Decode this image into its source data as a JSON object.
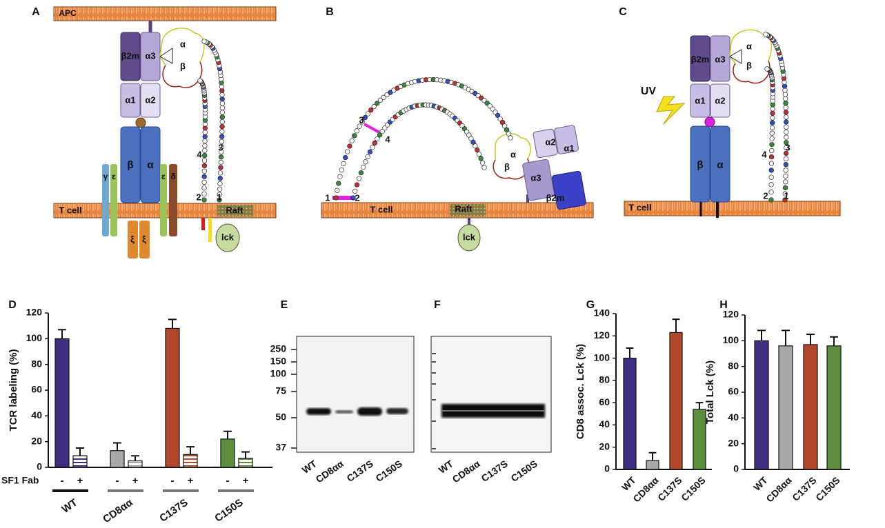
{
  "panel_A": {
    "label": "A",
    "texts": [
      "APC",
      "β2m",
      "α3",
      "α",
      "β",
      "α1",
      "α2",
      "β",
      "α",
      "γ",
      "ε",
      "ε",
      "δ",
      "ξ",
      "ξ",
      "T cell",
      "Raft",
      "lck",
      "2",
      "1",
      "4",
      "3"
    ]
  },
  "panel_B": {
    "label": "B",
    "texts": [
      "3",
      "4",
      "1",
      "2",
      "T cell",
      "Raft",
      "lck",
      "α",
      "β",
      "α2",
      "α1",
      "α3",
      "β2m"
    ]
  },
  "panel_C": {
    "label": "C",
    "texts": [
      "β2m",
      "α3",
      "α",
      "β",
      "UV",
      "α1",
      "α2",
      "β",
      "α",
      "4",
      "3",
      "2",
      "1",
      "T cell"
    ]
  },
  "blots": {
    "E": {
      "label": "E",
      "markers": [
        250,
        150,
        100,
        75,
        50,
        37
      ],
      "lanes": [
        "WT",
        "CD8αα",
        "C137S",
        "C150S"
      ]
    },
    "F": {
      "label": "F",
      "lanes": [
        "WT",
        "CD8αα",
        "C137S",
        "C150S"
      ]
    }
  },
  "chart_data": [
    {
      "type": "bar",
      "panel": "D",
      "ylabel": "TCR labeling (%)",
      "x_row_label": "SF1 Fab",
      "categories": [
        "WT",
        "CD8αα",
        "C137S",
        "C150S"
      ],
      "colors": [
        "#3f2d80",
        "#a9a9a9",
        "#b3472b",
        "#5b8f3d"
      ],
      "series": [
        {
          "name": "-",
          "values": [
            100,
            13,
            108,
            22
          ],
          "errors": [
            7,
            6,
            7,
            6
          ]
        },
        {
          "name": "+",
          "values": [
            9,
            5,
            10,
            7
          ],
          "errors": [
            6,
            4,
            6,
            5
          ],
          "pattern": "striped"
        }
      ],
      "ylim": [
        0,
        120
      ],
      "yticks": [
        0,
        20,
        40,
        60,
        80,
        100,
        120
      ]
    },
    {
      "type": "bar",
      "panel": "G",
      "ylabel": "CD8 assoc. Lck (%)",
      "categories": [
        "WT",
        "CD8αα",
        "C137S",
        "C150S"
      ],
      "colors": [
        "#3f2d80",
        "#a9a9a9",
        "#b3472b",
        "#5b8f3d"
      ],
      "values": [
        100,
        8,
        123,
        54
      ],
      "errors": [
        9,
        7,
        12,
        6
      ],
      "ylim": [
        0,
        140
      ],
      "yticks": [
        0,
        20,
        40,
        60,
        80,
        100,
        120,
        140
      ]
    },
    {
      "type": "bar",
      "panel": "H",
      "ylabel": "Total Lck (%)",
      "categories": [
        "WT",
        "CD8αα",
        "C137S",
        "C150S"
      ],
      "colors": [
        "#3f2d80",
        "#a9a9a9",
        "#b3472b",
        "#5b8f3d"
      ],
      "values": [
        100,
        96,
        97,
        96
      ],
      "errors": [
        8,
        12,
        8,
        7
      ],
      "ylim": [
        0,
        120
      ],
      "yticks": [
        0,
        20,
        40,
        60,
        80,
        100,
        120
      ]
    }
  ]
}
